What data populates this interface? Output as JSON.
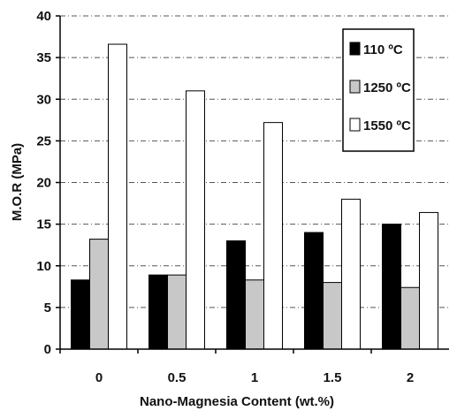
{
  "chart_data": {
    "type": "bar",
    "title": "",
    "xlabel": "Nano-Magnesia Content (wt.%)",
    "ylabel": "M.O.R (MPa)",
    "categories": [
      "0",
      "0.5",
      "1",
      "1.5",
      "2"
    ],
    "ylim": [
      0,
      40
    ],
    "yticks": [
      "0",
      "5",
      "10",
      "15",
      "20",
      "25",
      "30",
      "35",
      "40"
    ],
    "grid": "horizontal dash-dot",
    "legend_position": "top-right",
    "series": [
      {
        "name": "110 ºC",
        "color": "#000000",
        "values": [
          8.3,
          8.9,
          13.0,
          14.0,
          15.0
        ]
      },
      {
        "name": "1250 ºC",
        "color": "#c8c8c8",
        "values": [
          13.2,
          8.9,
          8.3,
          8.0,
          7.4
        ]
      },
      {
        "name": "1550 ºC",
        "color": "#ffffff",
        "values": [
          36.6,
          31.0,
          27.2,
          18.0,
          16.4
        ]
      }
    ]
  }
}
